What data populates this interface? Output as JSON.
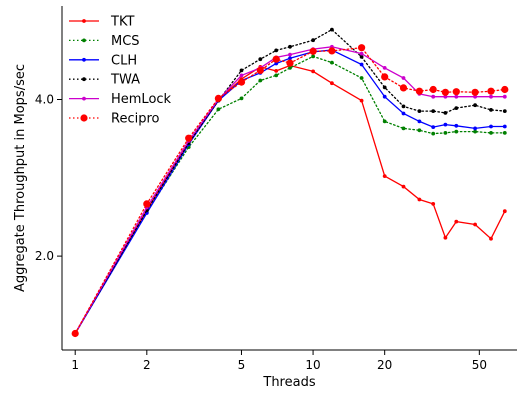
{
  "chart_data": {
    "type": "line",
    "title": "",
    "xlabel": "Threads",
    "ylabel": "Aggregate Throughput in Mops/sec",
    "x_scale": "log",
    "y_scale": "log",
    "xlim": [
      0.88,
      72
    ],
    "ylim": [
      1.32,
      6.05
    ],
    "xticks": [
      1,
      2,
      5,
      10,
      20,
      50
    ],
    "xtick_labels": [
      "1",
      "2",
      "5",
      "10",
      "20",
      "50"
    ],
    "yticks": [
      2.0,
      4.0
    ],
    "ytick_labels": [
      "2.0",
      "4.0"
    ],
    "grid": false,
    "legend_position": "top-left",
    "x": [
      1,
      2,
      3,
      4,
      5,
      6,
      7,
      8,
      10,
      12,
      16,
      20,
      24,
      28,
      32,
      36,
      40,
      48,
      56,
      64
    ],
    "series": [
      {
        "name": "TKT",
        "color": "#ff0000",
        "line_style": "solid",
        "marker": "small-dot",
        "values": [
          1.42,
          2.45,
          3.32,
          4.0,
          4.38,
          4.62,
          4.54,
          4.65,
          4.53,
          4.3,
          3.98,
          2.85,
          2.72,
          2.57,
          2.52,
          2.17,
          2.33,
          2.3,
          2.16,
          2.44
        ]
      },
      {
        "name": "MCS",
        "color": "#008000",
        "line_style": "dotted",
        "marker": "small-dot",
        "values": [
          1.42,
          2.43,
          3.24,
          3.83,
          4.02,
          4.35,
          4.45,
          4.6,
          4.84,
          4.71,
          4.4,
          3.63,
          3.52,
          3.49,
          3.44,
          3.45,
          3.47,
          3.47,
          3.45,
          3.45
        ]
      },
      {
        "name": "CLH",
        "color": "#0000ff",
        "line_style": "solid",
        "marker": "small-dot",
        "values": [
          1.42,
          2.42,
          3.28,
          3.98,
          4.35,
          4.5,
          4.69,
          4.8,
          4.94,
          4.98,
          4.67,
          4.05,
          3.76,
          3.63,
          3.54,
          3.58,
          3.56,
          3.52,
          3.55,
          3.55
        ]
      },
      {
        "name": "TWA",
        "color": "#000000",
        "line_style": "dotted",
        "marker": "small-dot",
        "values": [
          1.42,
          2.45,
          3.3,
          3.98,
          4.55,
          4.78,
          4.97,
          5.05,
          5.2,
          5.45,
          4.83,
          4.22,
          3.88,
          3.8,
          3.8,
          3.77,
          3.85,
          3.9,
          3.82,
          3.8
        ]
      },
      {
        "name": "HemLock",
        "color": "#cc00cc",
        "line_style": "solid",
        "marker": "small-dot",
        "values": [
          1.42,
          2.48,
          3.33,
          4.0,
          4.45,
          4.6,
          4.82,
          4.88,
          5.0,
          5.05,
          4.9,
          4.6,
          4.4,
          4.1,
          4.05,
          4.05,
          4.05,
          4.05,
          4.05,
          4.05
        ]
      },
      {
        "name": "Recipro",
        "color": "#ff0000",
        "line_style": "dotted",
        "marker": "large-dot",
        "values": [
          1.42,
          2.52,
          3.37,
          4.02,
          4.32,
          4.55,
          4.78,
          4.7,
          4.95,
          4.96,
          5.03,
          4.42,
          4.21,
          4.15,
          4.18,
          4.13,
          4.14,
          4.13,
          4.15,
          4.18
        ]
      }
    ]
  }
}
